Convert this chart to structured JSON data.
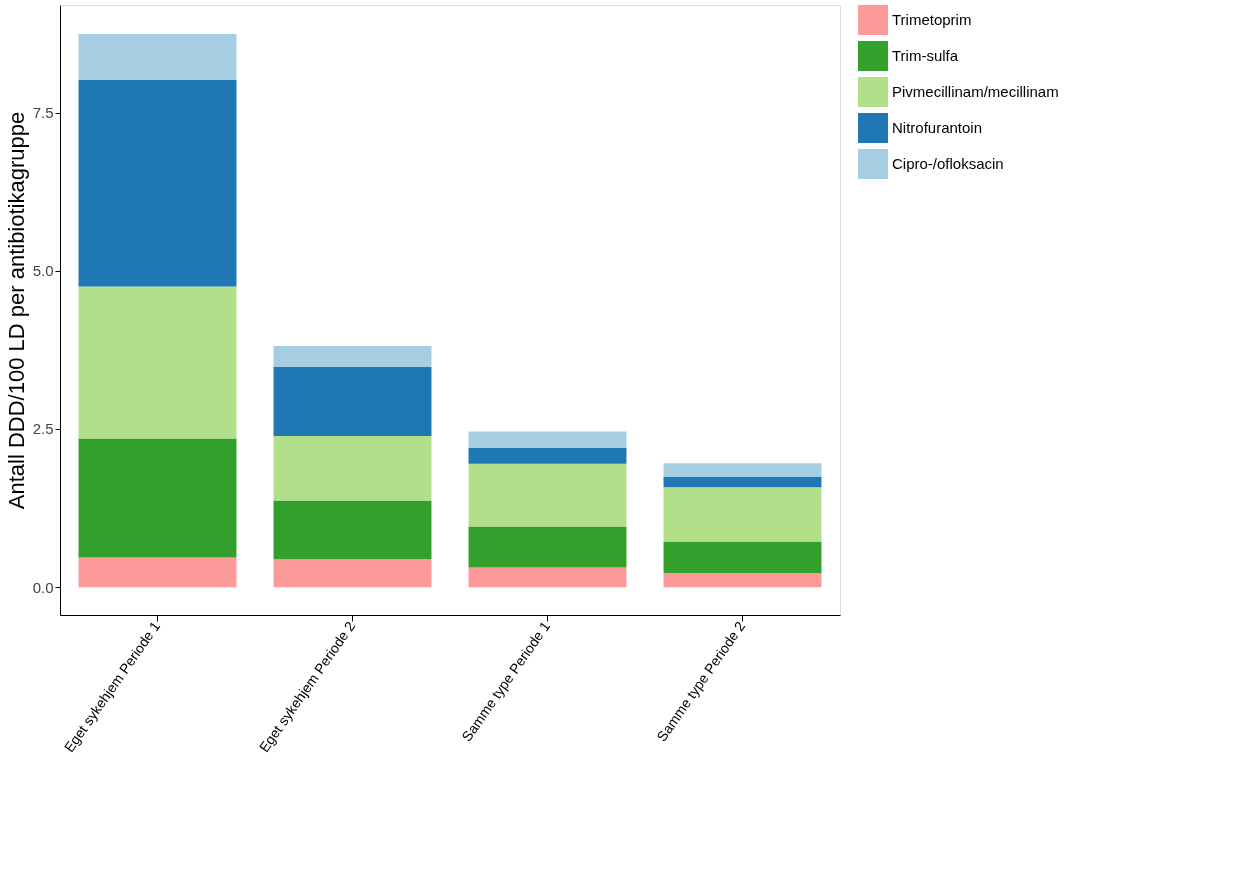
{
  "chart_data": {
    "type": "bar",
    "stacked": true,
    "ylabel": "Antall DDD/100 LD per antibiotikagruppe",
    "categories": [
      "Eget sykehjem Periode 1",
      "Eget sykehjem Periode 2",
      "Samme type Periode 1",
      "Samme type Periode 2"
    ],
    "series": [
      {
        "name": "Trimetoprim",
        "color": "#fb9a99",
        "values": [
          0.47,
          0.44,
          0.31,
          0.22
        ]
      },
      {
        "name": "Trim-sulfa",
        "color": "#33a02c",
        "values": [
          1.88,
          0.93,
          0.65,
          0.5
        ]
      },
      {
        "name": "Pivmecillinam/mecillinam",
        "color": "#b2df8a",
        "values": [
          2.4,
          1.02,
          0.99,
          0.86
        ]
      },
      {
        "name": "Nitrofurantoin",
        "color": "#1f78b4",
        "values": [
          3.27,
          1.09,
          0.25,
          0.16
        ]
      },
      {
        "name": "Cipro-/ofloksacin",
        "color": "#a6cee3",
        "values": [
          0.72,
          0.33,
          0.26,
          0.22
        ]
      }
    ],
    "ylim": [
      -0.44,
      9.2
    ],
    "yticks": [
      {
        "value": 0,
        "label": "0.0"
      },
      {
        "value": 2.5,
        "label": "2.5"
      },
      {
        "value": 5,
        "label": "5.0"
      },
      {
        "value": 7.5,
        "label": "7.5"
      }
    ],
    "grid": false,
    "legend": "right"
  }
}
